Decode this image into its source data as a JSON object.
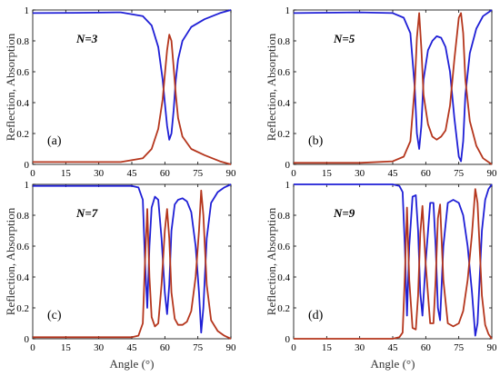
{
  "chart_data": [
    {
      "type": "line",
      "panel": "(a)",
      "annotation": "N=3",
      "xlabel": "",
      "ylabel": "Reflection, Absorption",
      "xlim": [
        0,
        90
      ],
      "ylim": [
        0,
        1
      ],
      "xticks": [
        "0",
        "15",
        "30",
        "45",
        "60",
        "75",
        "90"
      ],
      "yticks": [
        "0",
        "0.2",
        "0.4",
        "0.6",
        "0.8",
        "1"
      ],
      "grid": false,
      "series": [
        {
          "color": "#1f1fd6",
          "x": [
            0,
            20,
            40,
            50,
            54,
            57,
            59,
            60,
            61,
            62,
            63,
            64,
            65,
            66,
            68,
            72,
            78,
            85,
            90
          ],
          "y": [
            0.98,
            0.982,
            0.985,
            0.96,
            0.9,
            0.76,
            0.55,
            0.4,
            0.25,
            0.16,
            0.2,
            0.35,
            0.55,
            0.68,
            0.8,
            0.89,
            0.94,
            0.98,
            1.0
          ]
        },
        {
          "color": "#b5361d",
          "x": [
            0,
            20,
            40,
            50,
            54,
            57,
            59,
            60,
            61,
            62,
            63,
            64,
            65,
            66,
            68,
            72,
            78,
            85,
            90
          ],
          "y": [
            0.015,
            0.015,
            0.015,
            0.04,
            0.1,
            0.23,
            0.42,
            0.58,
            0.74,
            0.84,
            0.8,
            0.63,
            0.45,
            0.3,
            0.18,
            0.1,
            0.06,
            0.02,
            0.0
          ]
        }
      ]
    },
    {
      "type": "line",
      "panel": "(b)",
      "annotation": "N=5",
      "xlabel": "",
      "ylabel": "Reflection, Absorption",
      "xlim": [
        0,
        90
      ],
      "ylim": [
        0,
        1
      ],
      "xticks": [
        "0",
        "15",
        "30",
        "45",
        "60",
        "75",
        "90"
      ],
      "yticks": [
        "0",
        "0.2",
        "0.4",
        "0.6",
        "0.8",
        "1"
      ],
      "grid": false,
      "series": [
        {
          "color": "#1f1fd6",
          "x": [
            0,
            30,
            45,
            50,
            53,
            55,
            56,
            57,
            58,
            59,
            61,
            63,
            65,
            67,
            69,
            71,
            73,
            75,
            76,
            77,
            78,
            80,
            83,
            86,
            90
          ],
          "y": [
            0.98,
            0.985,
            0.98,
            0.95,
            0.85,
            0.5,
            0.2,
            0.1,
            0.25,
            0.55,
            0.74,
            0.8,
            0.83,
            0.82,
            0.76,
            0.6,
            0.3,
            0.05,
            0.02,
            0.15,
            0.45,
            0.72,
            0.88,
            0.96,
            1.0
          ]
        },
        {
          "color": "#b5361d",
          "x": [
            0,
            30,
            45,
            50,
            53,
            55,
            56,
            57,
            58,
            59,
            61,
            63,
            65,
            67,
            69,
            71,
            73,
            75,
            76,
            77,
            78,
            80,
            83,
            86,
            90
          ],
          "y": [
            0.01,
            0.01,
            0.02,
            0.05,
            0.15,
            0.5,
            0.82,
            0.98,
            0.75,
            0.45,
            0.26,
            0.18,
            0.16,
            0.18,
            0.22,
            0.38,
            0.68,
            0.95,
            0.98,
            0.85,
            0.55,
            0.28,
            0.12,
            0.04,
            0.0
          ]
        }
      ]
    },
    {
      "type": "line",
      "panel": "(c)",
      "annotation": "N=7",
      "xlabel": "Angle (°)",
      "ylabel": "Reflection, Absorption",
      "xlim": [
        0,
        90
      ],
      "ylim": [
        0,
        1
      ],
      "xticks": [
        "0",
        "15",
        "30",
        "45",
        "60",
        "75",
        "90"
      ],
      "yticks": [
        "0",
        "0.2",
        "0.4",
        "0.6",
        "0.8",
        "1"
      ],
      "grid": false,
      "series": [
        {
          "color": "#1f1fd6",
          "x": [
            0,
            30,
            45,
            48,
            50,
            51,
            52,
            53,
            54,
            55.5,
            57,
            58.5,
            60,
            61,
            62,
            63,
            64.5,
            66,
            68,
            70,
            72,
            74,
            75.5,
            76.5,
            77.5,
            79,
            81,
            84,
            87,
            90
          ],
          "y": [
            0.99,
            0.99,
            0.99,
            0.98,
            0.9,
            0.5,
            0.2,
            0.6,
            0.85,
            0.92,
            0.9,
            0.65,
            0.3,
            0.16,
            0.35,
            0.7,
            0.87,
            0.9,
            0.91,
            0.89,
            0.82,
            0.6,
            0.3,
            0.04,
            0.2,
            0.65,
            0.88,
            0.95,
            0.98,
            1.0
          ]
        },
        {
          "color": "#b5361d",
          "x": [
            0,
            30,
            45,
            48,
            50,
            51,
            52,
            53,
            54,
            55.5,
            57,
            58.5,
            60,
            61,
            62,
            63,
            64.5,
            66,
            68,
            70,
            72,
            74,
            75.5,
            76.5,
            77.5,
            79,
            81,
            84,
            87,
            90
          ],
          "y": [
            0.01,
            0.01,
            0.01,
            0.02,
            0.1,
            0.5,
            0.84,
            0.4,
            0.14,
            0.08,
            0.1,
            0.35,
            0.7,
            0.84,
            0.65,
            0.3,
            0.13,
            0.09,
            0.09,
            0.11,
            0.18,
            0.4,
            0.7,
            0.96,
            0.8,
            0.35,
            0.12,
            0.05,
            0.02,
            0.0
          ]
        }
      ]
    },
    {
      "type": "line",
      "panel": "(d)",
      "annotation": "N=9",
      "xlabel": "Angle (°)",
      "ylabel": "Reflection, Absorption",
      "xlim": [
        0,
        90
      ],
      "ylim": [
        0,
        1
      ],
      "xticks": [
        "0",
        "15",
        "30",
        "45",
        "60",
        "75",
        "90"
      ],
      "yticks": [
        "0",
        "0.2",
        "0.4",
        "0.6",
        "0.8",
        "1"
      ],
      "grid": false,
      "series": [
        {
          "color": "#1f1fd6",
          "x": [
            0,
            30,
            45,
            48,
            49.5,
            50.5,
            51.5,
            52.5,
            54,
            55.5,
            56.5,
            57.5,
            58.5,
            60,
            62,
            63.5,
            64.5,
            65.5,
            66.5,
            68,
            70,
            72.5,
            75,
            77,
            79,
            81,
            82.5,
            83.5,
            84.5,
            85.5,
            87,
            88.5,
            90
          ],
          "y": [
            1.0,
            1.0,
            1.0,
            0.99,
            0.95,
            0.6,
            0.15,
            0.6,
            0.92,
            0.93,
            0.7,
            0.3,
            0.15,
            0.5,
            0.88,
            0.88,
            0.6,
            0.2,
            0.12,
            0.6,
            0.88,
            0.9,
            0.88,
            0.8,
            0.6,
            0.3,
            0.02,
            0.1,
            0.4,
            0.7,
            0.9,
            0.97,
            1.0
          ]
        },
        {
          "color": "#b5361d",
          "x": [
            0,
            30,
            45,
            48,
            49.5,
            50.5,
            51.5,
            52.5,
            54,
            55.5,
            56.5,
            57.5,
            58.5,
            60,
            62,
            63.5,
            64.5,
            65.5,
            66.5,
            68,
            70,
            72.5,
            75,
            77,
            79,
            81,
            82.5,
            83.5,
            84.5,
            85.5,
            87,
            88.5,
            90
          ],
          "y": [
            0.0,
            0.0,
            0.0,
            0.01,
            0.04,
            0.4,
            0.85,
            0.38,
            0.07,
            0.06,
            0.28,
            0.68,
            0.86,
            0.48,
            0.1,
            0.1,
            0.38,
            0.78,
            0.87,
            0.38,
            0.1,
            0.08,
            0.1,
            0.18,
            0.38,
            0.68,
            0.97,
            0.88,
            0.58,
            0.28,
            0.09,
            0.03,
            0.0
          ]
        }
      ]
    }
  ]
}
